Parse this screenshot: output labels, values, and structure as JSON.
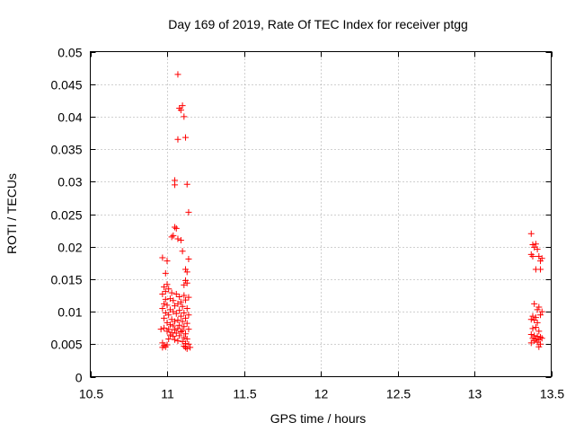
{
  "chart_data": {
    "type": "scatter",
    "title": "Day 169 of 2019, Rate Of TEC Index for receiver ptgg",
    "xlabel": "GPS time / hours",
    "ylabel": "ROTI / TECUs",
    "xlim": [
      10.5,
      13.5
    ],
    "ylim": [
      0,
      0.05
    ],
    "grid": true,
    "marker": "+",
    "marker_color": "#ff0000",
    "xticks": [
      {
        "value": 10.5,
        "label": "10.5"
      },
      {
        "value": 11,
        "label": "11"
      },
      {
        "value": 11.5,
        "label": "11.5"
      },
      {
        "value": 12,
        "label": "12"
      },
      {
        "value": 12.5,
        "label": "12.5"
      },
      {
        "value": 13,
        "label": "13"
      },
      {
        "value": 13.5,
        "label": "13.5"
      }
    ],
    "yticks": [
      {
        "value": 0,
        "label": "0"
      },
      {
        "value": 0.005,
        "label": "0.005"
      },
      {
        "value": 0.01,
        "label": "0.01"
      },
      {
        "value": 0.015,
        "label": "0.015"
      },
      {
        "value": 0.02,
        "label": "0.02"
      },
      {
        "value": 0.025,
        "label": "0.025"
      },
      {
        "value": 0.03,
        "label": "0.03"
      },
      {
        "value": 0.035,
        "label": "0.035"
      },
      {
        "value": 0.04,
        "label": "0.04"
      },
      {
        "value": 0.045,
        "label": "0.045"
      },
      {
        "value": 0.05,
        "label": "0.05"
      }
    ],
    "series": [
      {
        "name": "ROTI",
        "points": [
          [
            11.07,
            0.0465
          ],
          [
            11.08,
            0.0413
          ],
          [
            11.1,
            0.0417
          ],
          [
            11.09,
            0.041
          ],
          [
            11.11,
            0.04
          ],
          [
            11.07,
            0.0365
          ],
          [
            11.12,
            0.0368
          ],
          [
            11.05,
            0.0302
          ],
          [
            11.05,
            0.0295
          ],
          [
            11.13,
            0.0296
          ],
          [
            11.14,
            0.0253
          ],
          [
            11.05,
            0.023
          ],
          [
            11.06,
            0.0228
          ],
          [
            11.04,
            0.0217
          ],
          [
            11.03,
            0.0215
          ],
          [
            11.07,
            0.0212
          ],
          [
            11.09,
            0.021
          ],
          [
            11.1,
            0.0193
          ],
          [
            10.97,
            0.0183
          ],
          [
            11.0,
            0.0178
          ],
          [
            11.14,
            0.0181
          ],
          [
            11.12,
            0.0165
          ],
          [
            11.13,
            0.0161
          ],
          [
            10.99,
            0.0159
          ],
          [
            11.12,
            0.0148
          ],
          [
            11.13,
            0.0144
          ],
          [
            11.11,
            0.0141
          ],
          [
            11.0,
            0.0142
          ],
          [
            10.98,
            0.0138
          ],
          [
            11.01,
            0.0135
          ],
          [
            10.99,
            0.0131
          ],
          [
            11.03,
            0.0129
          ],
          [
            10.97,
            0.0127
          ],
          [
            11.06,
            0.0127
          ],
          [
            11.08,
            0.0123
          ],
          [
            11.11,
            0.0125
          ],
          [
            11.14,
            0.0122
          ],
          [
            11.02,
            0.012
          ],
          [
            10.99,
            0.0119
          ],
          [
            11.04,
            0.0117
          ],
          [
            11.09,
            0.0115
          ],
          [
            11.12,
            0.0118
          ],
          [
            10.98,
            0.0112
          ],
          [
            11.0,
            0.011
          ],
          [
            11.05,
            0.0109
          ],
          [
            11.07,
            0.0112
          ],
          [
            11.1,
            0.0108
          ],
          [
            11.13,
            0.0105
          ],
          [
            10.97,
            0.0105
          ],
          [
            11.02,
            0.0103
          ],
          [
            11.04,
            0.01
          ],
          [
            11.08,
            0.0102
          ],
          [
            11.11,
            0.0098
          ],
          [
            11.14,
            0.0095
          ],
          [
            10.99,
            0.0098
          ],
          [
            11.01,
            0.0095
          ],
          [
            11.06,
            0.0097
          ],
          [
            11.09,
            0.0093
          ],
          [
            11.12,
            0.009
          ],
          [
            10.98,
            0.009
          ],
          [
            11.03,
            0.0088
          ],
          [
            11.05,
            0.0085
          ],
          [
            11.07,
            0.0087
          ],
          [
            11.1,
            0.0085
          ],
          [
            11.13,
            0.0082
          ],
          [
            11.0,
            0.0083
          ],
          [
            11.02,
            0.008
          ],
          [
            11.04,
            0.0078
          ],
          [
            11.08,
            0.0079
          ],
          [
            11.11,
            0.0077
          ],
          [
            10.96,
            0.0073
          ],
          [
            10.98,
            0.0075
          ],
          [
            11.01,
            0.0073
          ],
          [
            11.05,
            0.0072
          ],
          [
            11.07,
            0.0074
          ],
          [
            11.1,
            0.0071
          ],
          [
            11.14,
            0.0073
          ],
          [
            11.0,
            0.007
          ],
          [
            11.03,
            0.0068
          ],
          [
            11.06,
            0.0067
          ],
          [
            11.09,
            0.0069
          ],
          [
            11.12,
            0.0066
          ],
          [
            11.02,
            0.0064
          ],
          [
            11.04,
            0.0062
          ],
          [
            11.08,
            0.0063
          ],
          [
            11.11,
            0.006
          ],
          [
            11.13,
            0.0058
          ],
          [
            11.01,
            0.0058
          ],
          [
            11.05,
            0.0057
          ],
          [
            11.07,
            0.0055
          ],
          [
            11.1,
            0.0054
          ],
          [
            10.97,
            0.0052
          ],
          [
            11.12,
            0.0051
          ],
          [
            11.14,
            0.005
          ],
          [
            10.98,
            0.0048
          ],
          [
            10.99,
            0.0046
          ],
          [
            11.0,
            0.0049
          ],
          [
            11.11,
            0.0047
          ],
          [
            11.12,
            0.0045
          ],
          [
            11.13,
            0.0043
          ],
          [
            11.15,
            0.0045
          ],
          [
            10.97,
            0.0045
          ],
          [
            13.37,
            0.022
          ],
          [
            13.38,
            0.0203
          ],
          [
            13.39,
            0.0199
          ],
          [
            13.4,
            0.0204
          ],
          [
            13.41,
            0.0196
          ],
          [
            13.37,
            0.0188
          ],
          [
            13.38,
            0.0185
          ],
          [
            13.42,
            0.0185
          ],
          [
            13.44,
            0.0182
          ],
          [
            13.43,
            0.0178
          ],
          [
            13.4,
            0.0165
          ],
          [
            13.43,
            0.0165
          ],
          [
            13.39,
            0.0112
          ],
          [
            13.42,
            0.0107
          ],
          [
            13.41,
            0.0103
          ],
          [
            13.44,
            0.01
          ],
          [
            13.38,
            0.0093
          ],
          [
            13.4,
            0.0091
          ],
          [
            13.37,
            0.0088
          ],
          [
            13.43,
            0.0095
          ],
          [
            13.39,
            0.0087
          ],
          [
            13.41,
            0.0083
          ],
          [
            13.38,
            0.0074
          ],
          [
            13.4,
            0.0076
          ],
          [
            13.42,
            0.007
          ],
          [
            13.37,
            0.0065
          ],
          [
            13.39,
            0.0063
          ],
          [
            13.41,
            0.0062
          ],
          [
            13.43,
            0.0061
          ],
          [
            13.38,
            0.0059
          ],
          [
            13.4,
            0.0058
          ],
          [
            13.42,
            0.0057
          ],
          [
            13.44,
            0.0059
          ],
          [
            13.39,
            0.0055
          ],
          [
            13.41,
            0.0053
          ],
          [
            13.43,
            0.005
          ],
          [
            13.37,
            0.0052
          ],
          [
            13.42,
            0.0046
          ]
        ]
      }
    ]
  }
}
